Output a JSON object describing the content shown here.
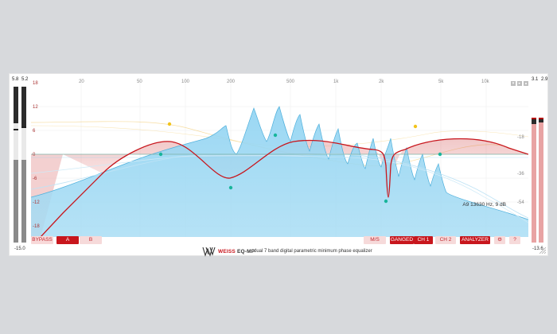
{
  "left_meter": {
    "top_values": [
      "5.8",
      "5.2"
    ],
    "bottom_value": "-15.0"
  },
  "right_meter": {
    "top_values": [
      "3.1",
      "2.9"
    ],
    "bottom_value": "-13.6"
  },
  "graph": {
    "freq_labels": [
      "20",
      "50",
      "100",
      "200",
      "500",
      "1k",
      "2k",
      "5k",
      "10k"
    ],
    "db_labels_left": [
      "18",
      "12",
      "6",
      "0",
      "-6",
      "-12",
      "-18"
    ],
    "db_labels_right": [
      "-18",
      "-36",
      "-54"
    ],
    "cursor_readout": "A9 13630 Hz, 9 dB"
  },
  "buttons": {
    "bypass": "BYPASS",
    "a": "A",
    "b": "B",
    "ms": "M/S",
    "ganged": "GANGED",
    "ch1": "CH 1",
    "ch2": "CH 2",
    "analyzer": "ANALYZER",
    "settings": "⚙",
    "help": "?"
  },
  "footer": {
    "brand": "WEISS",
    "model": "EQ-MP",
    "tagline": "dual 7 band digital parametric minimum phase equalizer"
  },
  "colors": {
    "accent_red": "#c8161d",
    "spectrum_blue": "#7fcbef",
    "node_teal": "#17b59b",
    "node_yellow": "#f2c31b"
  }
}
